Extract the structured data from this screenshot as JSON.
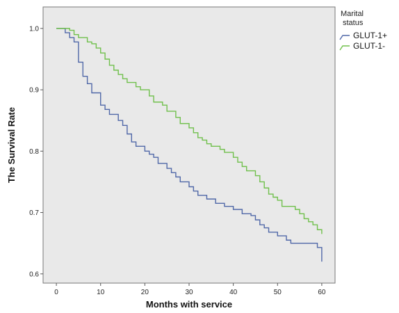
{
  "chart_data": {
    "type": "line",
    "step": true,
    "xlabel": "Months with service",
    "ylabel": "The Survival Rate",
    "xlim": [
      -3,
      63
    ],
    "ylim": [
      0.585,
      1.035
    ],
    "x_ticks": [
      0,
      10,
      20,
      30,
      40,
      50,
      60
    ],
    "y_ticks": [
      0.6,
      0.7,
      0.8,
      0.9,
      1.0
    ],
    "grid": false,
    "plot_background": "#e9e9e9",
    "legend": {
      "title": "Marital status",
      "title_lines": [
        "Marital",
        "status"
      ],
      "placement": "right-outside-top"
    },
    "series": [
      {
        "name": "GLUT-1+",
        "color": "#5068a8",
        "points": [
          [
            0,
            1.0
          ],
          [
            2,
            0.993
          ],
          [
            3,
            0.985
          ],
          [
            4,
            0.978
          ],
          [
            5,
            0.945
          ],
          [
            6,
            0.922
          ],
          [
            7,
            0.91
          ],
          [
            8,
            0.895
          ],
          [
            10,
            0.875
          ],
          [
            11,
            0.868
          ],
          [
            12,
            0.86
          ],
          [
            14,
            0.85
          ],
          [
            15,
            0.842
          ],
          [
            16,
            0.828
          ],
          [
            17,
            0.815
          ],
          [
            18,
            0.808
          ],
          [
            20,
            0.8
          ],
          [
            21,
            0.795
          ],
          [
            22,
            0.79
          ],
          [
            23,
            0.78
          ],
          [
            25,
            0.772
          ],
          [
            26,
            0.765
          ],
          [
            27,
            0.758
          ],
          [
            28,
            0.75
          ],
          [
            30,
            0.742
          ],
          [
            31,
            0.735
          ],
          [
            32,
            0.728
          ],
          [
            34,
            0.722
          ],
          [
            36,
            0.715
          ],
          [
            38,
            0.71
          ],
          [
            40,
            0.705
          ],
          [
            42,
            0.698
          ],
          [
            44,
            0.695
          ],
          [
            45,
            0.688
          ],
          [
            46,
            0.68
          ],
          [
            47,
            0.675
          ],
          [
            48,
            0.668
          ],
          [
            50,
            0.662
          ],
          [
            52,
            0.655
          ],
          [
            53,
            0.65
          ],
          [
            59,
            0.643
          ],
          [
            60,
            0.62
          ]
        ]
      },
      {
        "name": "GLUT-1-",
        "color": "#70c04c",
        "points": [
          [
            0,
            1.0
          ],
          [
            3,
            0.997
          ],
          [
            4,
            0.99
          ],
          [
            5,
            0.985
          ],
          [
            7,
            0.978
          ],
          [
            8,
            0.975
          ],
          [
            9,
            0.968
          ],
          [
            10,
            0.96
          ],
          [
            11,
            0.95
          ],
          [
            12,
            0.94
          ],
          [
            13,
            0.932
          ],
          [
            14,
            0.925
          ],
          [
            15,
            0.918
          ],
          [
            16,
            0.912
          ],
          [
            18,
            0.905
          ],
          [
            19,
            0.9
          ],
          [
            21,
            0.89
          ],
          [
            22,
            0.88
          ],
          [
            24,
            0.875
          ],
          [
            25,
            0.865
          ],
          [
            27,
            0.855
          ],
          [
            28,
            0.845
          ],
          [
            30,
            0.838
          ],
          [
            31,
            0.83
          ],
          [
            32,
            0.822
          ],
          [
            33,
            0.818
          ],
          [
            34,
            0.812
          ],
          [
            35,
            0.808
          ],
          [
            37,
            0.803
          ],
          [
            38,
            0.798
          ],
          [
            40,
            0.79
          ],
          [
            41,
            0.782
          ],
          [
            42,
            0.775
          ],
          [
            43,
            0.768
          ],
          [
            45,
            0.76
          ],
          [
            46,
            0.75
          ],
          [
            47,
            0.74
          ],
          [
            48,
            0.73
          ],
          [
            49,
            0.725
          ],
          [
            50,
            0.72
          ],
          [
            51,
            0.71
          ],
          [
            54,
            0.705
          ],
          [
            55,
            0.698
          ],
          [
            56,
            0.69
          ],
          [
            57,
            0.685
          ],
          [
            58,
            0.68
          ],
          [
            59,
            0.672
          ],
          [
            60,
            0.665
          ]
        ]
      }
    ]
  }
}
